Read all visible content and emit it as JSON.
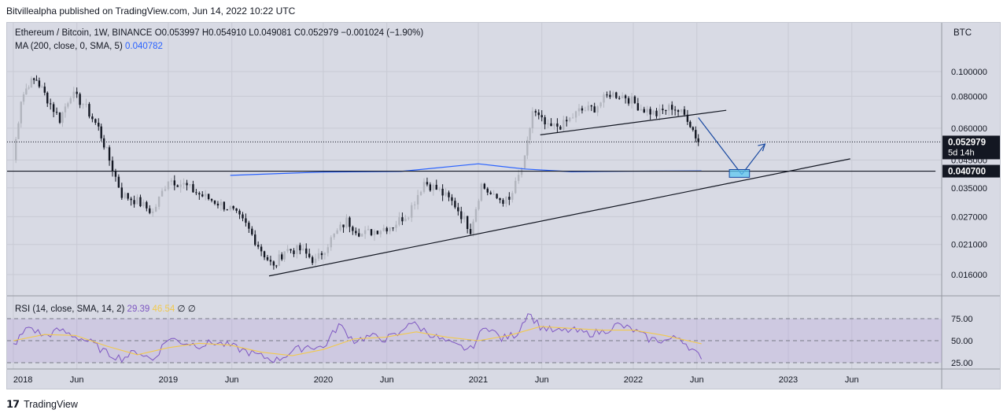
{
  "caption": "Bitvillealpha published on TradingView.com, Jun 14, 2022 10:22 UTC",
  "footer": {
    "brand": "TradingView",
    "logo_icon": "tradingview-logo-icon"
  },
  "legend": {
    "symbol": "Ethereum / Bitcoin, 1W, BINANCE",
    "o": "O0.053997",
    "h": "H0.054910",
    "l": "L0.049081",
    "c": "C0.052979",
    "chg": "−0.001024 (−1.90%)",
    "ma_label": "MA (200, close, 0, SMA, 5)",
    "ma_value": "0.040782"
  },
  "rsi_legend": {
    "label": "RSI (14, close, SMA, 14, 2)",
    "rsi_value": "29.39",
    "ma_value": "46.54",
    "extra": "∅ ∅"
  },
  "colors": {
    "up": "#b2b5be",
    "down": "#131722",
    "ma": "#2962ff",
    "rsi": "#7e57c2",
    "rsi_ma": "#f2c94c",
    "projection": "#1848a0",
    "target_box": "#5ec8f2"
  },
  "chart_data": {
    "type": "candlestick",
    "title": "Ethereum / Bitcoin, 1W, BINANCE",
    "y_axis_unit": "BTC",
    "y_scale": "log",
    "y_ticks": [
      "0.100000",
      "0.080000",
      "0.060000",
      "0.045000",
      "0.035000",
      "0.027000",
      "0.021000",
      "0.016000"
    ],
    "x_ticks": [
      "2018",
      "Jun",
      "2019",
      "Jun",
      "2020",
      "Jun",
      "2021",
      "Jun",
      "2022",
      "Jun",
      "2023",
      "Jun"
    ],
    "last_price": "0.052979",
    "countdown": "5d 14h",
    "ma_price": "0.040700",
    "close_series": [
      {
        "t": 2018.0,
        "v": 0.045
      },
      {
        "t": 2018.05,
        "v": 0.078
      },
      {
        "t": 2018.1,
        "v": 0.09
      },
      {
        "t": 2018.15,
        "v": 0.093
      },
      {
        "t": 2018.22,
        "v": 0.078
      },
      {
        "t": 2018.3,
        "v": 0.065
      },
      {
        "t": 2018.37,
        "v": 0.082
      },
      {
        "t": 2018.45,
        "v": 0.075
      },
      {
        "t": 2018.55,
        "v": 0.06
      },
      {
        "t": 2018.62,
        "v": 0.045
      },
      {
        "t": 2018.7,
        "v": 0.033
      },
      {
        "t": 2018.8,
        "v": 0.031
      },
      {
        "t": 2018.9,
        "v": 0.028
      },
      {
        "t": 2019.0,
        "v": 0.038
      },
      {
        "t": 2019.1,
        "v": 0.036
      },
      {
        "t": 2019.2,
        "v": 0.033
      },
      {
        "t": 2019.3,
        "v": 0.031
      },
      {
        "t": 2019.4,
        "v": 0.029
      },
      {
        "t": 2019.5,
        "v": 0.025
      },
      {
        "t": 2019.6,
        "v": 0.02
      },
      {
        "t": 2019.68,
        "v": 0.017
      },
      {
        "t": 2019.75,
        "v": 0.02
      },
      {
        "t": 2019.85,
        "v": 0.02
      },
      {
        "t": 2019.95,
        "v": 0.018
      },
      {
        "t": 2020.05,
        "v": 0.022
      },
      {
        "t": 2020.15,
        "v": 0.026
      },
      {
        "t": 2020.25,
        "v": 0.023
      },
      {
        "t": 2020.35,
        "v": 0.024
      },
      {
        "t": 2020.45,
        "v": 0.025
      },
      {
        "t": 2020.55,
        "v": 0.028
      },
      {
        "t": 2020.65,
        "v": 0.037
      },
      {
        "t": 2020.75,
        "v": 0.034
      },
      {
        "t": 2020.85,
        "v": 0.03
      },
      {
        "t": 2020.95,
        "v": 0.024
      },
      {
        "t": 2021.02,
        "v": 0.036
      },
      {
        "t": 2021.1,
        "v": 0.032
      },
      {
        "t": 2021.2,
        "v": 0.031
      },
      {
        "t": 2021.3,
        "v": 0.045
      },
      {
        "t": 2021.35,
        "v": 0.07
      },
      {
        "t": 2021.45,
        "v": 0.06
      },
      {
        "t": 2021.55,
        "v": 0.062
      },
      {
        "t": 2021.65,
        "v": 0.07
      },
      {
        "t": 2021.75,
        "v": 0.072
      },
      {
        "t": 2021.85,
        "v": 0.082
      },
      {
        "t": 2021.95,
        "v": 0.08
      },
      {
        "t": 2022.05,
        "v": 0.072
      },
      {
        "t": 2022.15,
        "v": 0.068
      },
      {
        "t": 2022.25,
        "v": 0.073
      },
      {
        "t": 2022.35,
        "v": 0.066
      },
      {
        "t": 2022.42,
        "v": 0.053
      }
    ],
    "ma_series": [
      {
        "t": 2019.4,
        "v": 0.0392
      },
      {
        "t": 2020.0,
        "v": 0.0404
      },
      {
        "t": 2020.5,
        "v": 0.0406
      },
      {
        "t": 2021.0,
        "v": 0.0435
      },
      {
        "t": 2021.3,
        "v": 0.0415
      },
      {
        "t": 2021.6,
        "v": 0.0405
      },
      {
        "t": 2022.0,
        "v": 0.0407
      },
      {
        "t": 2022.44,
        "v": 0.0408
      }
    ],
    "rsi_series": [
      {
        "t": 2018.0,
        "v": 45
      },
      {
        "t": 2018.1,
        "v": 66
      },
      {
        "t": 2018.2,
        "v": 55
      },
      {
        "t": 2018.3,
        "v": 62
      },
      {
        "t": 2018.4,
        "v": 55
      },
      {
        "t": 2018.5,
        "v": 48
      },
      {
        "t": 2018.6,
        "v": 36
      },
      {
        "t": 2018.7,
        "v": 30
      },
      {
        "t": 2018.8,
        "v": 38
      },
      {
        "t": 2018.9,
        "v": 28
      },
      {
        "t": 2019.0,
        "v": 53
      },
      {
        "t": 2019.1,
        "v": 48
      },
      {
        "t": 2019.2,
        "v": 45
      },
      {
        "t": 2019.3,
        "v": 48
      },
      {
        "t": 2019.4,
        "v": 44
      },
      {
        "t": 2019.5,
        "v": 38
      },
      {
        "t": 2019.6,
        "v": 32
      },
      {
        "t": 2019.7,
        "v": 28
      },
      {
        "t": 2019.8,
        "v": 38
      },
      {
        "t": 2019.9,
        "v": 44
      },
      {
        "t": 2020.0,
        "v": 42
      },
      {
        "t": 2020.1,
        "v": 68
      },
      {
        "t": 2020.2,
        "v": 50
      },
      {
        "t": 2020.3,
        "v": 55
      },
      {
        "t": 2020.4,
        "v": 52
      },
      {
        "t": 2020.5,
        "v": 58
      },
      {
        "t": 2020.55,
        "v": 72
      },
      {
        "t": 2020.65,
        "v": 62
      },
      {
        "t": 2020.75,
        "v": 52
      },
      {
        "t": 2020.85,
        "v": 44
      },
      {
        "t": 2020.95,
        "v": 40
      },
      {
        "t": 2021.05,
        "v": 68
      },
      {
        "t": 2021.15,
        "v": 52
      },
      {
        "t": 2021.25,
        "v": 58
      },
      {
        "t": 2021.32,
        "v": 82
      },
      {
        "t": 2021.4,
        "v": 66
      },
      {
        "t": 2021.5,
        "v": 60
      },
      {
        "t": 2021.6,
        "v": 62
      },
      {
        "t": 2021.7,
        "v": 58
      },
      {
        "t": 2021.8,
        "v": 60
      },
      {
        "t": 2021.9,
        "v": 68
      },
      {
        "t": 2022.0,
        "v": 62
      },
      {
        "t": 2022.1,
        "v": 52
      },
      {
        "t": 2022.2,
        "v": 50
      },
      {
        "t": 2022.3,
        "v": 54
      },
      {
        "t": 2022.38,
        "v": 40
      },
      {
        "t": 2022.44,
        "v": 29
      }
    ],
    "rsi_ma_series": [
      {
        "t": 2018.0,
        "v": 50
      },
      {
        "t": 2018.2,
        "v": 57
      },
      {
        "t": 2018.4,
        "v": 56
      },
      {
        "t": 2018.6,
        "v": 44
      },
      {
        "t": 2018.8,
        "v": 34
      },
      {
        "t": 2019.0,
        "v": 42
      },
      {
        "t": 2019.2,
        "v": 47
      },
      {
        "t": 2019.4,
        "v": 45
      },
      {
        "t": 2019.6,
        "v": 37
      },
      {
        "t": 2019.8,
        "v": 33
      },
      {
        "t": 2020.0,
        "v": 40
      },
      {
        "t": 2020.2,
        "v": 52
      },
      {
        "t": 2020.4,
        "v": 54
      },
      {
        "t": 2020.6,
        "v": 60
      },
      {
        "t": 2020.8,
        "v": 54
      },
      {
        "t": 2021.0,
        "v": 50
      },
      {
        "t": 2021.2,
        "v": 56
      },
      {
        "t": 2021.4,
        "v": 66
      },
      {
        "t": 2021.6,
        "v": 64
      },
      {
        "t": 2021.8,
        "v": 62
      },
      {
        "t": 2022.0,
        "v": 62
      },
      {
        "t": 2022.2,
        "v": 56
      },
      {
        "t": 2022.44,
        "v": 46.5
      }
    ],
    "rsi_levels": [
      "75.00",
      "50.00",
      "25.00"
    ],
    "trendlines": [
      {
        "from": {
          "t": 2019.65,
          "v": 0.0158
        },
        "to": {
          "t": 2023.4,
          "v": 0.0455
        },
        "color": "#131722"
      },
      {
        "from": {
          "t": 2021.4,
          "v": 0.0565
        },
        "to": {
          "t": 2022.6,
          "v": 0.0705
        },
        "color": "#131722"
      },
      {
        "from": {
          "t": 2017.9,
          "v": 0.0407
        },
        "to": {
          "t": 2023.95,
          "v": 0.0407
        },
        "color": "#131722"
      },
      {
        "from": {
          "t": 2022.42,
          "v": 0.066
        },
        "to": {
          "t": 2022.7,
          "v": 0.0395
        },
        "color": "#1848a0"
      },
      {
        "from": {
          "t": 2022.7,
          "v": 0.0395
        },
        "to": {
          "t": 2022.85,
          "v": 0.052
        },
        "color": "#1848a0"
      }
    ],
    "target_zone": {
      "t0": 2022.62,
      "t1": 2022.75,
      "v0": 0.0385,
      "v1": 0.0413
    }
  }
}
